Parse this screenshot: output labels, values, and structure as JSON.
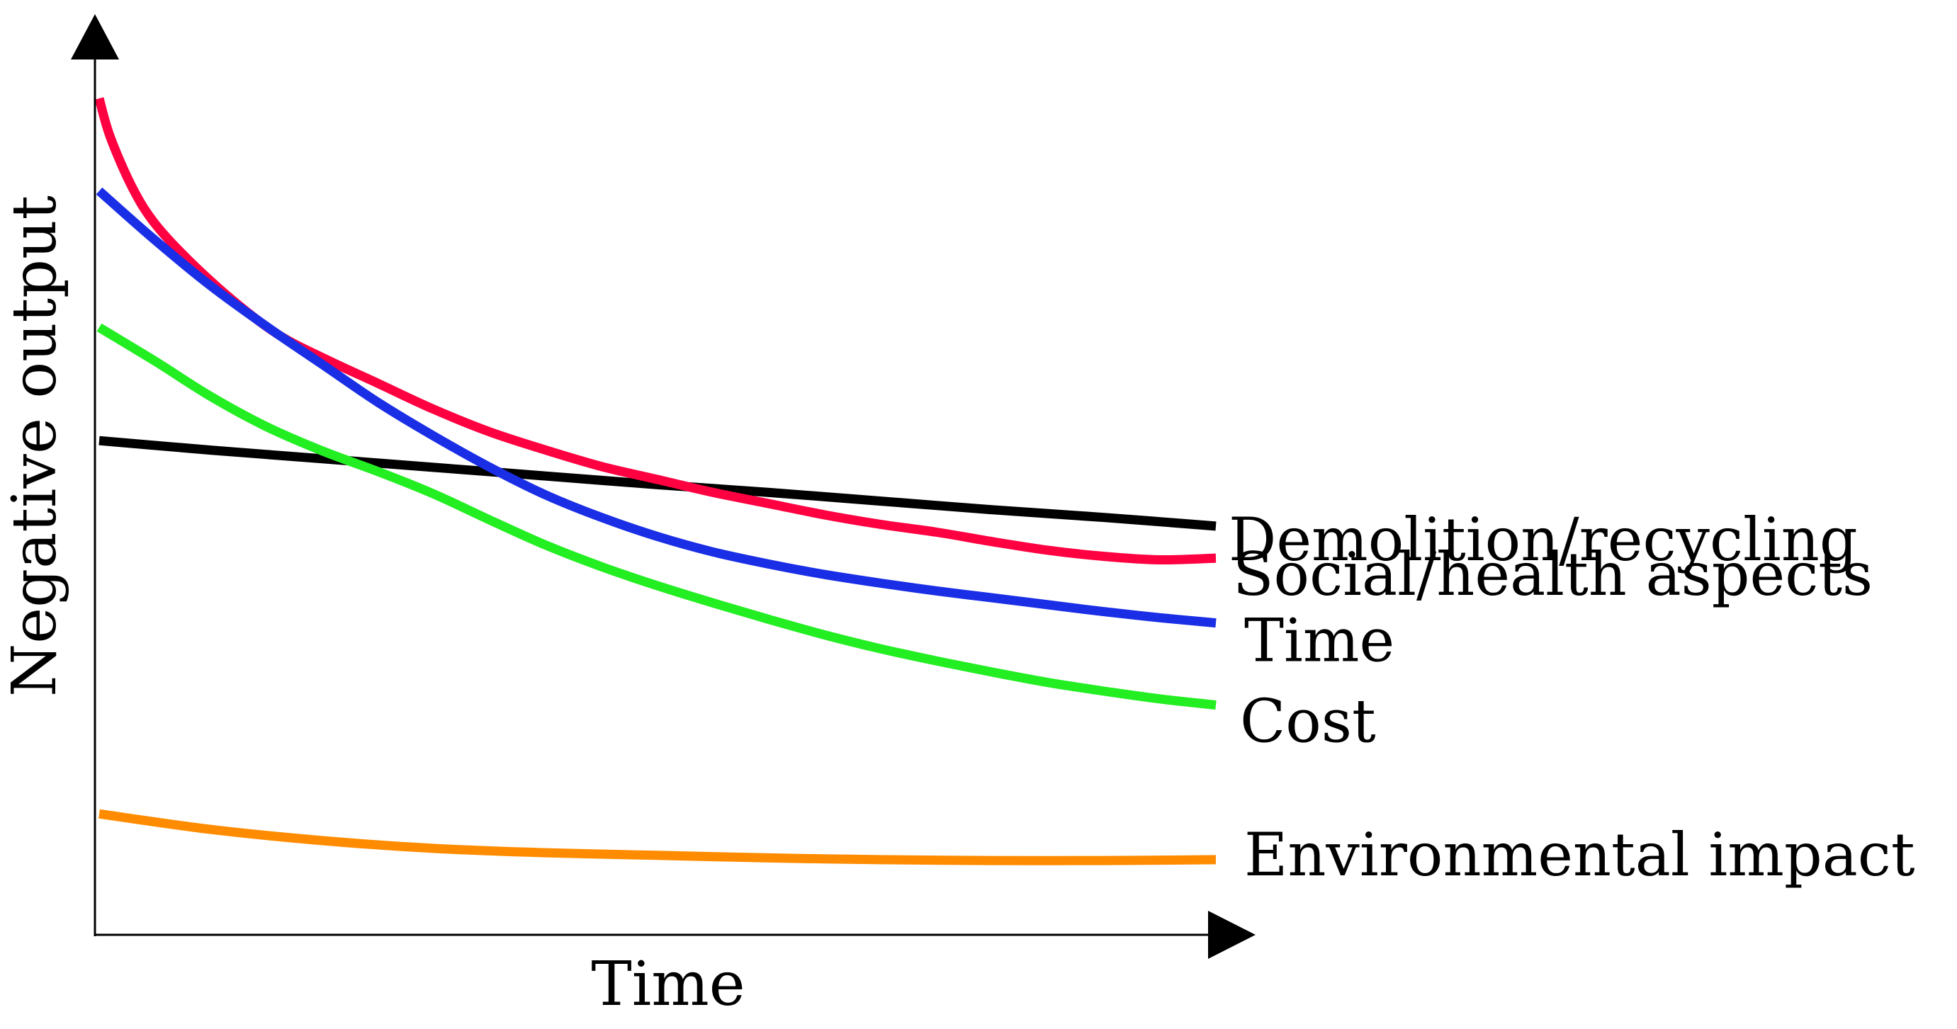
{
  "chart_data": {
    "type": "line",
    "title": "",
    "xlabel": "Time",
    "ylabel": "Negative output",
    "grid": false,
    "xlim": [
      0,
      100
    ],
    "ylim": [
      0,
      100
    ],
    "tick_labels": false,
    "legend": "inline-right",
    "series": [
      {
        "name": "Demolition/recycling",
        "color": "#000000",
        "x": [
          0,
          10,
          20,
          30,
          40,
          50,
          60,
          70,
          80,
          90,
          100
        ],
        "y": [
          57.2,
          56.1,
          55.1,
          54.1,
          53.1,
          52.1,
          51.2,
          50.2,
          49.2,
          48.3,
          47.3
        ]
      },
      {
        "name": "Social/health aspects",
        "color": "#ff0040",
        "x": [
          0,
          1,
          3,
          5,
          8,
          12,
          16,
          20,
          25,
          30,
          35,
          40,
          45,
          50,
          55,
          60,
          65,
          70,
          75,
          80,
          85,
          90,
          95,
          100
        ],
        "y": [
          96.8,
          92.3,
          86.4,
          82.3,
          78.1,
          73.4,
          69.5,
          66.8,
          63.8,
          60.8,
          58.2,
          56.1,
          54.2,
          52.7,
          51.2,
          49.9,
          48.6,
          47.5,
          46.6,
          45.5,
          44.5,
          43.8,
          43.4,
          43.6
        ]
      },
      {
        "name": "Time",
        "color": "#1a2ee6",
        "x": [
          0,
          5,
          10,
          15,
          20,
          25,
          30,
          35,
          40,
          45,
          50,
          55,
          60,
          65,
          70,
          75,
          80,
          85,
          90,
          95,
          100
        ],
        "y": [
          86.1,
          80.4,
          75.1,
          70.4,
          66.0,
          61.6,
          57.7,
          54.1,
          50.9,
          48.3,
          46.1,
          44.3,
          42.9,
          41.7,
          40.7,
          39.8,
          39.0,
          38.2,
          37.4,
          36.7,
          36.1
        ]
      },
      {
        "name": "Cost",
        "color": "#22ee22",
        "x": [
          0,
          5,
          10,
          15,
          20,
          25,
          30,
          35,
          40,
          45,
          50,
          55,
          60,
          65,
          70,
          75,
          80,
          85,
          90,
          95,
          100
        ],
        "y": [
          70.3,
          66.4,
          62.3,
          58.8,
          56.0,
          53.6,
          51.0,
          48.0,
          45.1,
          42.6,
          40.4,
          38.4,
          36.5,
          34.7,
          33.1,
          31.7,
          30.4,
          29.2,
          28.2,
          27.3,
          26.6
        ]
      },
      {
        "name": "Environmental impact",
        "color": "#ff8c00",
        "x": [
          0,
          10,
          20,
          30,
          40,
          50,
          60,
          70,
          80,
          90,
          100
        ],
        "y": [
          14.0,
          12.2,
          10.9,
          10.0,
          9.5,
          9.2,
          8.9,
          8.7,
          8.6,
          8.6,
          8.7
        ]
      }
    ]
  }
}
